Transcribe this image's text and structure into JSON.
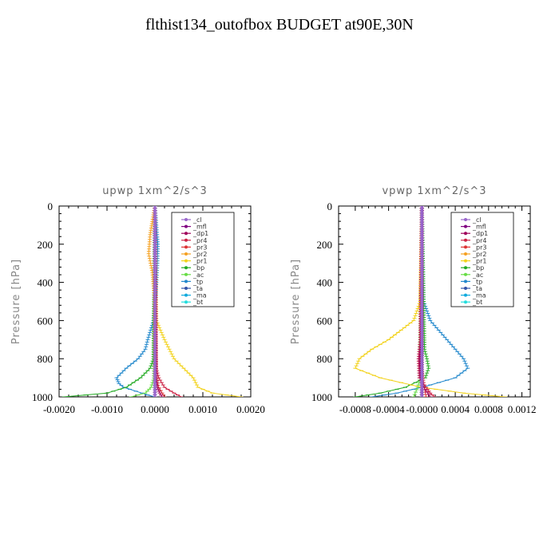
{
  "page_title": "flthist134_outofbox  BUDGET at90E,30N",
  "chart_data": [
    {
      "type": "line",
      "title": "upwp   1xm^2/s^3",
      "ylabel": "Pressure [hPa]",
      "xlim": [
        -0.002,
        0.002
      ],
      "ylim": [
        1000,
        0
      ],
      "x_ticks": [
        "-0.0020",
        "-0.0010",
        "0.0000",
        "0.0010",
        "0.0020"
      ],
      "x_tick_values": [
        -0.002,
        -0.001,
        0.0,
        0.001,
        0.002
      ],
      "y_ticks": [
        "0",
        "200",
        "400",
        "600",
        "800",
        "1000"
      ],
      "y_tick_values": [
        0,
        200,
        400,
        600,
        800,
        1000
      ],
      "series": [
        {
          "name": "_cl",
          "color": "#9966cc",
          "p": [
            0,
            1000
          ],
          "x": [
            0,
            0
          ]
        },
        {
          "name": "_mfl",
          "color": "#800080",
          "p": [
            0,
            1000
          ],
          "x": [
            0,
            0
          ]
        },
        {
          "name": "_dp1",
          "color": "#a0005a",
          "p": [
            0,
            900,
            950,
            980,
            1000
          ],
          "x": [
            0,
            2e-05,
            5e-05,
            0.0001,
            0.00015
          ]
        },
        {
          "name": "_pr4",
          "color": "#cc2244",
          "p": [
            0,
            850,
            900,
            950,
            980,
            1000
          ],
          "x": [
            0,
            2e-05,
            8e-05,
            0.0002,
            0.0004,
            0.00055
          ]
        },
        {
          "name": "_pr3",
          "color": "#dd3333",
          "p": [
            0,
            880,
            940,
            980,
            1000
          ],
          "x": [
            0,
            2e-05,
            6e-05,
            0.00015,
            0.0002
          ]
        },
        {
          "name": "_pr2",
          "color": "#f5a020",
          "p": [
            0,
            150,
            250,
            350,
            500,
            1000
          ],
          "x": [
            0,
            -0.0001,
            -0.00013,
            -5e-05,
            0,
            0
          ]
        },
        {
          "name": "_pr1",
          "color": "#f2d21a",
          "p": [
            0,
            600,
            700,
            800,
            850,
            900,
            950,
            980,
            1000
          ],
          "x": [
            0,
            3e-05,
            0.0002,
            0.0004,
            0.0006,
            0.0008,
            0.0009,
            0.0012,
            0.0018
          ]
        },
        {
          "name": "_bp",
          "color": "#22aa22",
          "p": [
            0,
            800,
            850,
            900,
            950,
            980,
            1000
          ],
          "x": [
            0,
            -3e-05,
            -0.0001,
            -0.0003,
            -0.0006,
            -0.001,
            -0.0019
          ]
        },
        {
          "name": "_ac",
          "color": "#66dd44",
          "p": [
            0,
            900,
            950,
            980,
            1000
          ],
          "x": [
            0,
            -2e-05,
            -8e-05,
            -0.0002,
            -0.0005
          ]
        },
        {
          "name": "_tp",
          "color": "#2288cc",
          "p": [
            0,
            100,
            200,
            300,
            400,
            500,
            600,
            700,
            750,
            800,
            850,
            900,
            930,
            950,
            970,
            990,
            1000
          ],
          "x": [
            0,
            3e-05,
            6e-05,
            5e-05,
            3e-05,
            0,
            -3e-05,
            -0.00015,
            -0.0002,
            -0.00035,
            -0.0006,
            -0.0008,
            -0.00075,
            -0.00065,
            -0.0004,
            -0.00015,
            0
          ]
        },
        {
          "name": "_ta",
          "color": "#3355aa",
          "p": [
            0,
            1000
          ],
          "x": [
            0,
            0
          ]
        },
        {
          "name": "_ma",
          "color": "#11aadd",
          "p": [
            0,
            1000
          ],
          "x": [
            0,
            0
          ]
        },
        {
          "name": "_bt",
          "color": "#22dddd",
          "p": [
            0,
            1000
          ],
          "x": [
            0,
            0
          ]
        }
      ]
    },
    {
      "type": "line",
      "title": "vpwp   1xm^2/s^3",
      "ylabel": "Pressure [hPa]",
      "xlim": [
        -0.001,
        0.0013
      ],
      "ylim": [
        1000,
        0
      ],
      "x_ticks": [
        "-0.0008",
        "-0.0004",
        "-0.0000",
        "0.0004",
        "0.0008",
        "0.0012"
      ],
      "x_tick_values": [
        -0.0008,
        -0.0004,
        0.0,
        0.0004,
        0.0008,
        0.0012
      ],
      "y_ticks": [
        "0",
        "200",
        "400",
        "600",
        "800",
        "1000"
      ],
      "y_tick_values": [
        0,
        200,
        400,
        600,
        800,
        1000
      ],
      "series": [
        {
          "name": "_cl",
          "color": "#9966cc",
          "p": [
            0,
            1000
          ],
          "x": [
            0,
            0
          ]
        },
        {
          "name": "_mfl",
          "color": "#800080",
          "p": [
            0,
            1000
          ],
          "x": [
            0,
            0
          ]
        },
        {
          "name": "_dp1",
          "color": "#a0005a",
          "p": [
            0,
            700,
            800,
            900,
            950,
            1000
          ],
          "x": [
            0,
            -1e-05,
            -3e-05,
            -2e-05,
            2e-05,
            0.0001
          ]
        },
        {
          "name": "_pr4",
          "color": "#cc2244",
          "p": [
            0,
            700,
            800,
            900,
            950,
            980,
            1000
          ],
          "x": [
            0,
            -2e-05,
            -4e-05,
            -3e-05,
            5e-05,
            0.0001,
            0.00015
          ]
        },
        {
          "name": "_pr3",
          "color": "#dd3333",
          "p": [
            0,
            850,
            950,
            1000
          ],
          "x": [
            0,
            -1e-05,
            3e-05,
            5e-05
          ]
        },
        {
          "name": "_pr2",
          "color": "#f5a020",
          "p": [
            0,
            1000
          ],
          "x": [
            0,
            0
          ]
        },
        {
          "name": "_pr1",
          "color": "#f2d21a",
          "p": [
            0,
            500,
            600,
            700,
            750,
            800,
            850,
            900,
            950,
            980,
            1000
          ],
          "x": [
            0,
            -2e-05,
            -0.0001,
            -0.0004,
            -0.0006,
            -0.00075,
            -0.0008,
            -0.0005,
            0,
            0.0005,
            0.001
          ]
        },
        {
          "name": "_bp",
          "color": "#22aa22",
          "p": [
            0,
            750,
            800,
            850,
            900,
            950,
            980,
            1000
          ],
          "x": [
            0,
            3e-05,
            6e-05,
            8e-05,
            4e-05,
            -0.0002,
            -0.0005,
            -0.0008
          ]
        },
        {
          "name": "_ac",
          "color": "#66dd44",
          "p": [
            0,
            900,
            950,
            1000
          ],
          "x": [
            0,
            -2e-05,
            -5e-05,
            -0.0001
          ]
        },
        {
          "name": "_tp",
          "color": "#2288cc",
          "p": [
            0,
            500,
            600,
            700,
            750,
            800,
            850,
            900,
            950,
            980,
            1000
          ],
          "x": [
            0,
            2e-05,
            0.0001,
            0.0003,
            0.0004,
            0.0005,
            0.00055,
            0.0004,
            0,
            -0.0003,
            -0.0006
          ]
        },
        {
          "name": "_ta",
          "color": "#3355aa",
          "p": [
            0,
            1000
          ],
          "x": [
            0,
            0
          ]
        },
        {
          "name": "_ma",
          "color": "#11aadd",
          "p": [
            0,
            1000
          ],
          "x": [
            0,
            0
          ]
        },
        {
          "name": "_bt",
          "color": "#22dddd",
          "p": [
            0,
            1000
          ],
          "x": [
            0,
            0
          ]
        }
      ]
    }
  ]
}
